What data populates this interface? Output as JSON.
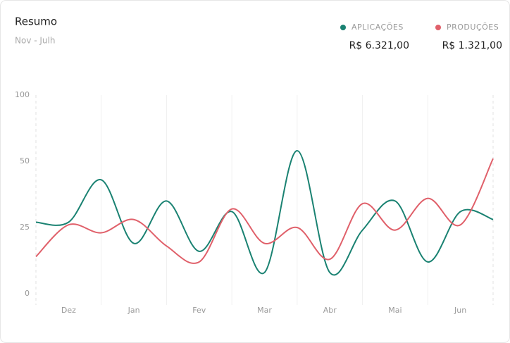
{
  "chart_data": {
    "type": "line",
    "title": "Resumo",
    "subtitle": "Nov - Julh",
    "categories": [
      null,
      "Dez",
      null,
      "Jan",
      null,
      "Fev",
      null,
      "Mar",
      null,
      "Abr",
      null,
      "Mai",
      null,
      "Jun",
      null
    ],
    "series": [
      {
        "name": "APLICAÇÕES",
        "total": "R$ 6.321,00",
        "color": "#1a8272",
        "values": [
          27,
          27,
          43,
          19,
          35,
          16,
          31,
          8,
          58,
          8,
          24,
          35,
          12,
          31,
          28
        ]
      },
      {
        "name": "PRODUÇÕES",
        "total": "R$ 1.321,00",
        "color": "#e0606a",
        "values": [
          14,
          26,
          23,
          28,
          18,
          12,
          32,
          19,
          25,
          13,
          34,
          24,
          36,
          26,
          52
        ]
      }
    ],
    "ylim": [
      0,
      100
    ],
    "yticks": [
      0,
      25,
      50,
      100
    ],
    "grid": true,
    "legend": "top-right"
  }
}
